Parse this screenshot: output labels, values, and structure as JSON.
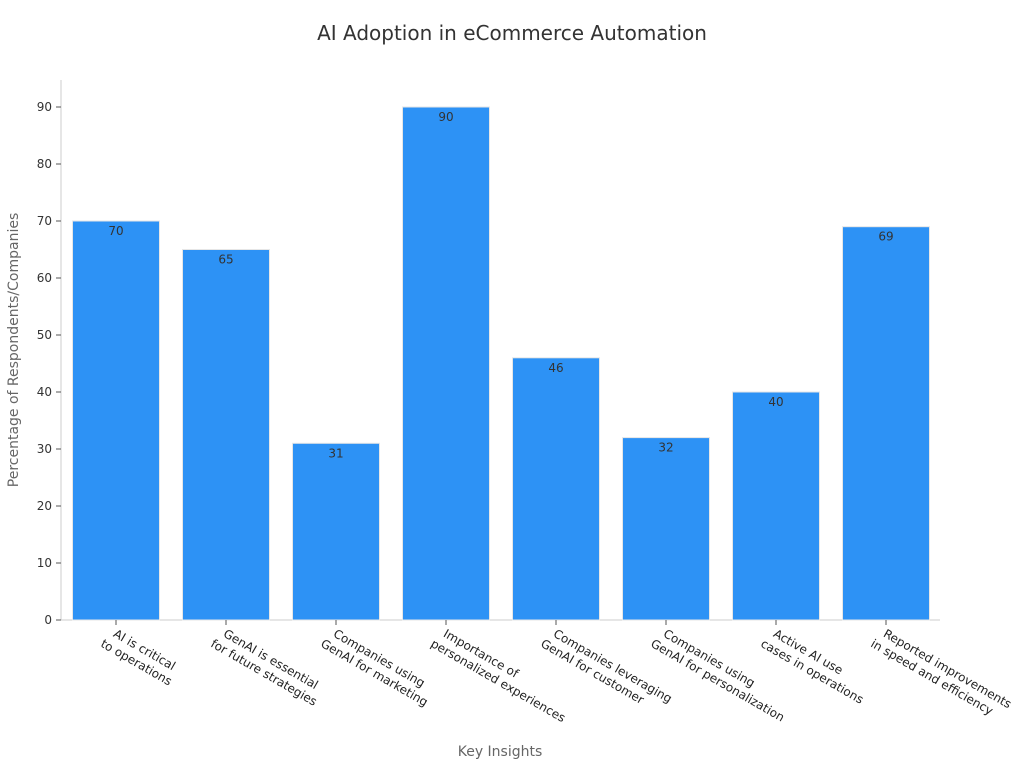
{
  "chart_data": {
    "type": "bar",
    "title": "AI Adoption in eCommerce Automation",
    "xlabel": "Key Insights",
    "ylabel": "Percentage of Respondents/Companies",
    "ylim": [
      0,
      95
    ],
    "yticks": [
      0,
      10,
      20,
      30,
      40,
      50,
      60,
      70,
      80,
      90
    ],
    "grid": false,
    "bar_color": "#2d92f5",
    "categories": [
      [
        "AI is critical",
        "to operations"
      ],
      [
        "GenAI is essential",
        "for future strategies"
      ],
      [
        "Companies using",
        "GenAI for marketing"
      ],
      [
        "Importance of",
        "personalized experiences"
      ],
      [
        "Companies leveraging",
        "GenAI for customer"
      ],
      [
        "Companies using",
        "GenAI for personalization"
      ],
      [
        "Active AI use",
        "cases in operations"
      ],
      [
        "Reported improvements",
        "in speed and efficiency"
      ]
    ],
    "values": [
      70,
      65,
      31,
      90,
      46,
      32,
      40,
      69
    ]
  }
}
